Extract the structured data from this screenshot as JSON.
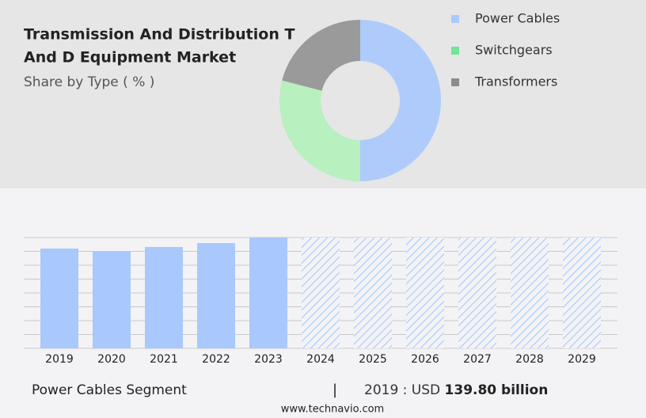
{
  "chart_data": [
    {
      "type": "pie",
      "title_lines": [
        "Transmission And Distribution T",
        "And D Equipment Market"
      ],
      "subtitle": "Share by Type ( % )",
      "categories": [
        "Power Cables",
        "Switchgears",
        "Transformers"
      ],
      "values": [
        50,
        29,
        21
      ],
      "colors": [
        "#aecbfb",
        "#b8f0bf",
        "#9a9a9a"
      ],
      "legend_colors": [
        "#a9c8fc",
        "#6fe699",
        "#8c8c8c"
      ],
      "legend_position": "right"
    },
    {
      "type": "bar",
      "categories": [
        "2019",
        "2020",
        "2021",
        "2022",
        "2023",
        "2024",
        "2025",
        "2026",
        "2027",
        "2028",
        "2029"
      ],
      "values": [
        139.8,
        135.4,
        142,
        147.5,
        155.3,
        null,
        null,
        null,
        null,
        null,
        null
      ],
      "color": "#a9c8fc",
      "ylim": [
        0,
        155.3
      ],
      "grid": true
    }
  ],
  "footer": {
    "segment": "Power Cables Segment",
    "separator": "|",
    "year_label": "2019 : USD",
    "value": "139.80 billion",
    "source": "www.technavio.com"
  }
}
